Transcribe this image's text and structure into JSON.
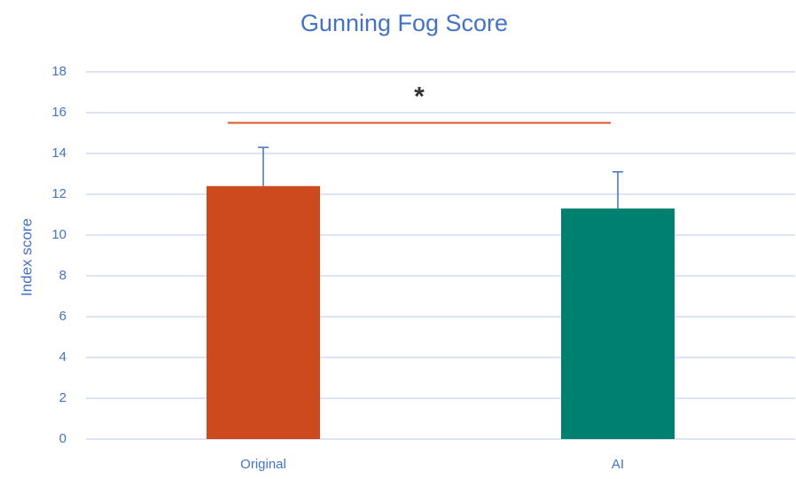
{
  "chart_data": {
    "type": "bar",
    "title": "Gunning Fog Score",
    "y_label": "Index score",
    "categories": [
      "Original",
      "AI"
    ],
    "values": [
      12.4,
      11.3
    ],
    "errors": [
      1.9,
      1.8
    ],
    "colors": [
      "#cc4a1e",
      "#00806e"
    ],
    "error_color": "#4472c4",
    "ylim": [
      0,
      18
    ],
    "yticks": [
      0,
      2,
      4,
      6,
      8,
      10,
      12,
      14,
      16,
      18
    ],
    "grid": true,
    "significance": {
      "label": "*",
      "y": 15.5,
      "color": "#e0542a"
    }
  }
}
